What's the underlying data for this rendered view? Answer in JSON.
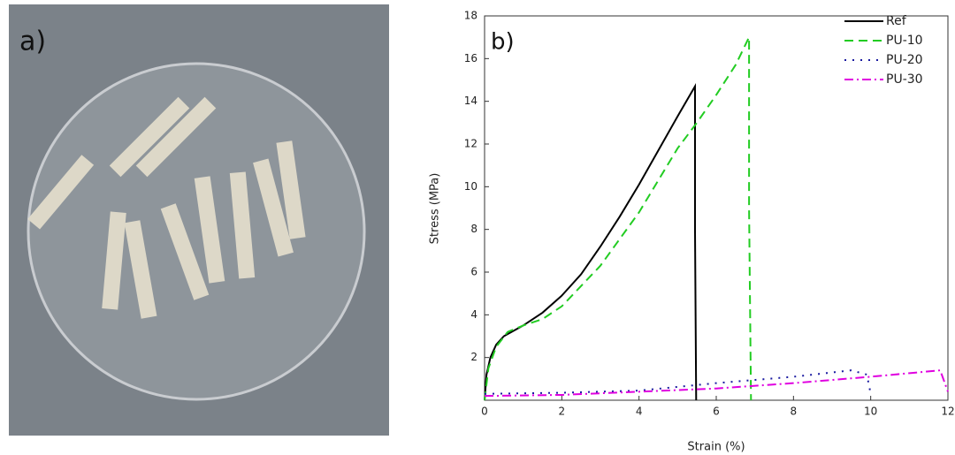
{
  "panel_a": {
    "label": "a)"
  },
  "chart_data": {
    "type": "line",
    "panel_label": "b)",
    "x_label": "Strain (%)",
    "y_label": "Stress (MPa)",
    "xlim": [
      0,
      12
    ],
    "xticks": [
      0,
      2,
      4,
      6,
      8,
      10,
      12
    ],
    "ylim": [
      0,
      18
    ],
    "yticks": [
      2,
      4,
      6,
      8,
      10,
      12,
      14,
      16,
      18
    ],
    "legend": "top-right",
    "series": [
      {
        "name": "Ref",
        "color": "#000000",
        "dash": "none",
        "x": [
          0,
          0.05,
          0.15,
          0.3,
          0.5,
          1,
          1.5,
          2,
          2.5,
          3,
          3.5,
          4,
          4.5,
          5,
          5.45,
          5.45,
          5.48
        ],
        "values": [
          0,
          1.2,
          2,
          2.6,
          3,
          3.5,
          4.1,
          4.9,
          5.9,
          7.2,
          8.6,
          10.1,
          11.7,
          13.3,
          14.7,
          8,
          0
        ]
      },
      {
        "name": "PU-10",
        "color": "#22cc22",
        "dash": "10 6",
        "x": [
          0,
          0.1,
          0.3,
          0.6,
          1,
          1.5,
          2,
          3,
          4,
          5,
          5.5,
          6,
          6.5,
          6.85,
          6.85,
          6.9
        ],
        "values": [
          0,
          1.5,
          2.5,
          3.2,
          3.5,
          3.8,
          4.4,
          6.3,
          8.8,
          11.8,
          13,
          14.3,
          15.7,
          17,
          9,
          0
        ]
      },
      {
        "name": "PU-20",
        "color": "#1a1aa0",
        "dash": "2 7",
        "x": [
          0,
          2,
          4,
          6,
          8,
          9.5,
          9.9,
          10
        ],
        "values": [
          0.3,
          0.35,
          0.45,
          0.8,
          1.1,
          1.4,
          1.2,
          0.3
        ]
      },
      {
        "name": "PU-30",
        "color": "#e000e0",
        "dash": "10 4 2 4",
        "x": [
          0,
          2,
          4,
          6,
          8,
          10,
          11.8,
          12
        ],
        "values": [
          0.2,
          0.25,
          0.4,
          0.55,
          0.8,
          1.1,
          1.4,
          0.4
        ]
      }
    ]
  }
}
